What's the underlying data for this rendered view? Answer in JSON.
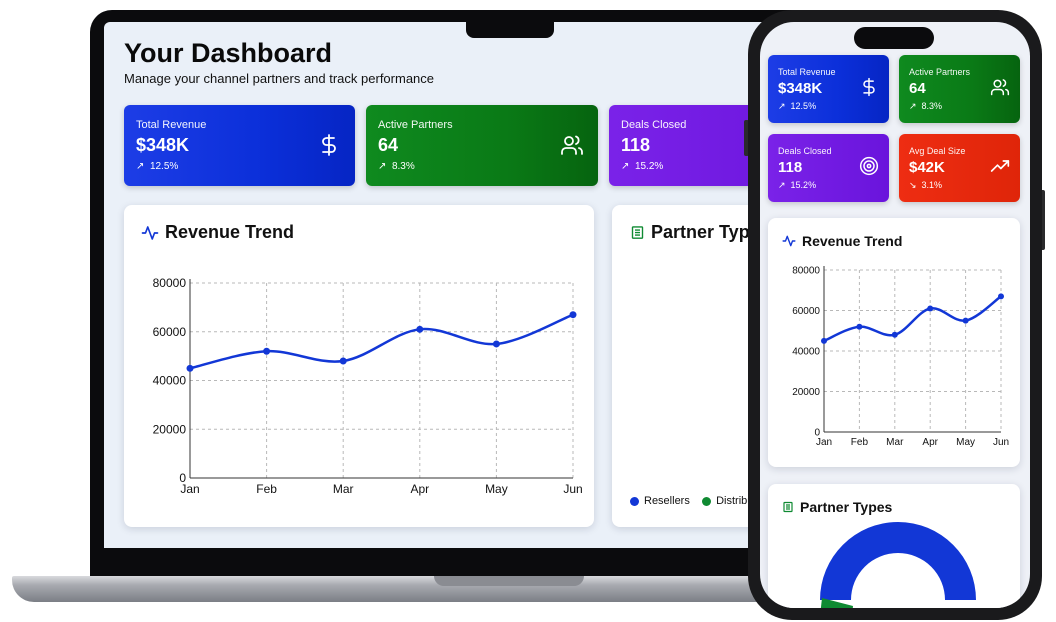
{
  "dashboard": {
    "title": "Your Dashboard",
    "subtitle": "Manage your channel partners and track performance"
  },
  "stats": [
    {
      "label": "Total Revenue",
      "value": "$348K",
      "change": "12.5%",
      "trend": "up",
      "icon": "dollar-icon",
      "color": "#0b2fd9"
    },
    {
      "label": "Active Partners",
      "value": "64",
      "change": "8.3%",
      "trend": "up",
      "icon": "users-icon",
      "color": "#0a7a16"
    },
    {
      "label": "Deals Closed",
      "value": "118",
      "change": "15.2%",
      "trend": "up",
      "icon": "target-icon",
      "color": "#6a14dc"
    },
    {
      "label": "Avg Deal Size",
      "value": "$42K",
      "change": "3.1%",
      "trend": "down",
      "icon": "trending-up-icon",
      "color": "#df2509"
    }
  ],
  "revenue_card": {
    "title": "Revenue Trend",
    "icon": "activity-icon"
  },
  "partner_card": {
    "title": "Partner Types",
    "icon": "building-icon",
    "legend": [
      "Resellers",
      "Distribu"
    ]
  },
  "chart_data": [
    {
      "type": "line",
      "title": "Revenue Trend",
      "categories": [
        "Jan",
        "Feb",
        "Mar",
        "Apr",
        "May",
        "Jun"
      ],
      "series": [
        {
          "values": [
            45000,
            52000,
            48000,
            61000,
            55000,
            67000
          ]
        }
      ],
      "yticks": [
        "0",
        "20000",
        "40000",
        "60000",
        "80000"
      ],
      "ylim": [
        0,
        80000
      ],
      "grid": true,
      "color": "#1237d6"
    },
    {
      "type": "pie",
      "title": "Partner Types",
      "categories": [
        "Resellers",
        "Distributors"
      ],
      "colors": [
        "#1237d6",
        "#0f8a32"
      ]
    }
  ]
}
